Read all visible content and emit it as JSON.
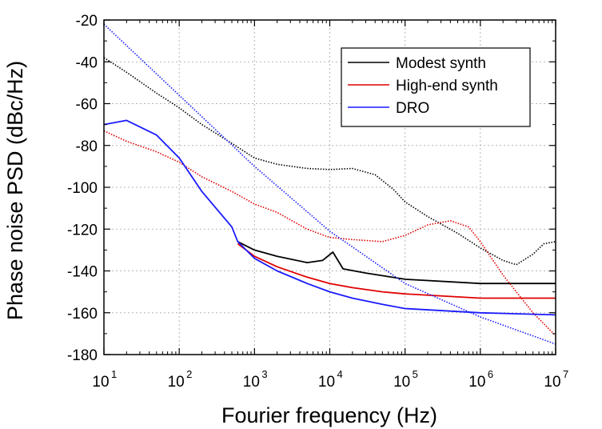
{
  "chart_data": {
    "type": "line",
    "title": "",
    "xlabel": "Fourier frequency (Hz)",
    "ylabel": "Phase noise PSD (dBc/Hz)",
    "x_scale": "log",
    "xlim": [
      10,
      10000000
    ],
    "ylim": [
      -180,
      -20
    ],
    "grid": true,
    "legend_position": "top-right",
    "x_ticks": [
      {
        "base": "10",
        "exp": "1"
      },
      {
        "base": "10",
        "exp": "2"
      },
      {
        "base": "10",
        "exp": "3"
      },
      {
        "base": "10",
        "exp": "4"
      },
      {
        "base": "10",
        "exp": "5"
      },
      {
        "base": "10",
        "exp": "6"
      },
      {
        "base": "10",
        "exp": "7"
      }
    ],
    "x_tick_values": [
      10,
      100,
      1000,
      10000,
      100000,
      1000000,
      10000000
    ],
    "y_ticks": [
      -20,
      -40,
      -60,
      -80,
      -100,
      -120,
      -140,
      -160,
      -180
    ],
    "series": [
      {
        "name": "Modest synth",
        "color": "#000000",
        "style": "dotted",
        "x": [
          10,
          20,
          50,
          100,
          200,
          500,
          1000,
          2000,
          5000,
          10000,
          20000,
          40000,
          70000,
          100000,
          200000,
          500000,
          1000000,
          2000000,
          3000000,
          5000000,
          7000000,
          10000000
        ],
        "y": [
          -38,
          -45,
          -55,
          -62,
          -70,
          -79,
          -86,
          -89,
          -91,
          -91.5,
          -91,
          -94,
          -101,
          -107,
          -114,
          -122,
          -129,
          -135,
          -137,
          -132,
          -127,
          -126
        ]
      },
      {
        "name": "Modest synth",
        "color": "#000000",
        "style": "solid",
        "x": [
          600,
          1000,
          2000,
          5000,
          8000,
          11000,
          15000,
          30000,
          100000,
          1000000,
          10000000
        ],
        "y": [
          -126,
          -130,
          -133,
          -136,
          -135,
          -131,
          -139,
          -141,
          -144,
          -146,
          -146
        ]
      },
      {
        "name": "High-end synth",
        "color": "#e00000",
        "style": "dotted",
        "x": [
          10,
          20,
          50,
          100,
          200,
          500,
          1000,
          2000,
          5000,
          10000,
          20000,
          50000,
          100000,
          200000,
          400000,
          700000,
          1000000,
          2000000,
          5000000,
          10000000
        ],
        "y": [
          -73,
          -78,
          -83,
          -88,
          -95,
          -102,
          -108,
          -112,
          -120,
          -124,
          -125,
          -126,
          -123,
          -118,
          -116,
          -119,
          -126,
          -142,
          -160,
          -171
        ]
      },
      {
        "name": "High-end synth",
        "color": "#e00000",
        "style": "solid",
        "x": [
          600,
          1000,
          2000,
          5000,
          10000,
          20000,
          50000,
          100000,
          1000000,
          10000000
        ],
        "y": [
          -127,
          -133,
          -138,
          -143,
          -146,
          -148,
          -150,
          -151,
          -153,
          -153
        ]
      },
      {
        "name": "DRO",
        "color": "#1a1aff",
        "style": "dotted",
        "x": [
          10,
          100,
          1000,
          10000,
          100000,
          1000000,
          10000000
        ],
        "y": [
          -22,
          -56,
          -90,
          -121,
          -146,
          -162,
          -175
        ]
      },
      {
        "name": "DRO",
        "color": "#1a1aff",
        "style": "solid",
        "x": [
          10,
          20,
          50,
          100,
          200,
          500,
          600,
          1000,
          2000,
          5000,
          10000,
          20000,
          50000,
          100000,
          1000000,
          10000000
        ],
        "y": [
          -70,
          -68,
          -75,
          -86,
          -102,
          -119,
          -126,
          -134,
          -140,
          -146,
          -150,
          -153,
          -156,
          -158,
          -160,
          -161
        ]
      }
    ],
    "legend": [
      {
        "label": "Modest synth",
        "color": "#000000"
      },
      {
        "label": "High-end synth",
        "color": "#e00000"
      },
      {
        "label": "DRO",
        "color": "#1a1aff"
      }
    ]
  }
}
